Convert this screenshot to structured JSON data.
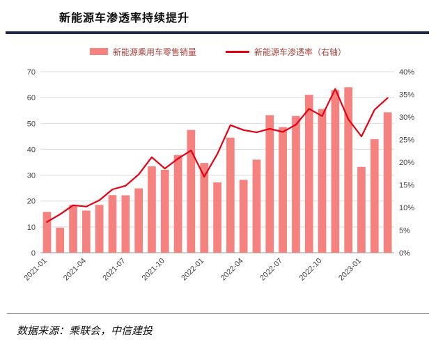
{
  "title": "新能源车渗透率持续提升",
  "source": "数据来源：乘联会，中信建投",
  "colors": {
    "bar": "#F5827F",
    "line": "#E60012",
    "title_rule": "#1B2A4A",
    "grid": "#D9D9D9",
    "axis_line": "#999999",
    "axis_text": "#3F3F3F",
    "legend_text": "#A6403C"
  },
  "legend": [
    {
      "label": "新能源乘用车零售销量",
      "marker": "bar"
    },
    {
      "label": "新能源车渗透率（右轴）",
      "marker": "line"
    }
  ],
  "chart_data": {
    "type": "bar",
    "title": "新能源车渗透率持续提升",
    "x": [
      "2021-01",
      "2021-02",
      "2021-03",
      "2021-04",
      "2021-05",
      "2021-06",
      "2021-07",
      "2021-08",
      "2021-09",
      "2021-10",
      "2021-11",
      "2021-12",
      "2022-01",
      "2022-02",
      "2022-03",
      "2022-04",
      "2022-05",
      "2022-06",
      "2022-07",
      "2022-08",
      "2022-09",
      "2022-10",
      "2022-11",
      "2022-12",
      "2023-01",
      "2023-02",
      "2023-03"
    ],
    "series": [
      {
        "name": "新能源乘用车零售销量",
        "type": "bar",
        "axis": "left",
        "values": [
          15.8,
          9.7,
          18.5,
          16.3,
          18.5,
          22.3,
          22.2,
          24.9,
          33.4,
          32.1,
          37.8,
          47.5,
          34.7,
          27.2,
          44.5,
          28.2,
          36.0,
          53.2,
          48.6,
          52.9,
          61.1,
          55.6,
          62.9,
          64.0,
          33.2,
          43.9,
          54.3
        ]
      },
      {
        "name": "新能源车渗透率（右轴）",
        "type": "line",
        "axis": "right",
        "values": [
          6.8,
          8.5,
          10.5,
          10.2,
          11.6,
          14.0,
          14.8,
          17.3,
          21.1,
          18.6,
          20.8,
          22.6,
          16.8,
          21.8,
          28.2,
          27.1,
          26.6,
          27.4,
          26.7,
          28.3,
          31.8,
          30.2,
          36.2,
          29.5,
          25.7,
          31.6,
          34.2
        ]
      }
    ],
    "left_axis": {
      "min": 0,
      "max": 70,
      "step": 10
    },
    "right_axis": {
      "min": 0,
      "max": 40,
      "step": 5,
      "suffix": "%"
    },
    "x_tick_labels": [
      "2021-01",
      "2021-04",
      "2021-07",
      "2021-10",
      "2022-01",
      "2022-04",
      "2022-07",
      "2022-10",
      "2023-01"
    ],
    "grid": true,
    "legend_position": "top"
  }
}
